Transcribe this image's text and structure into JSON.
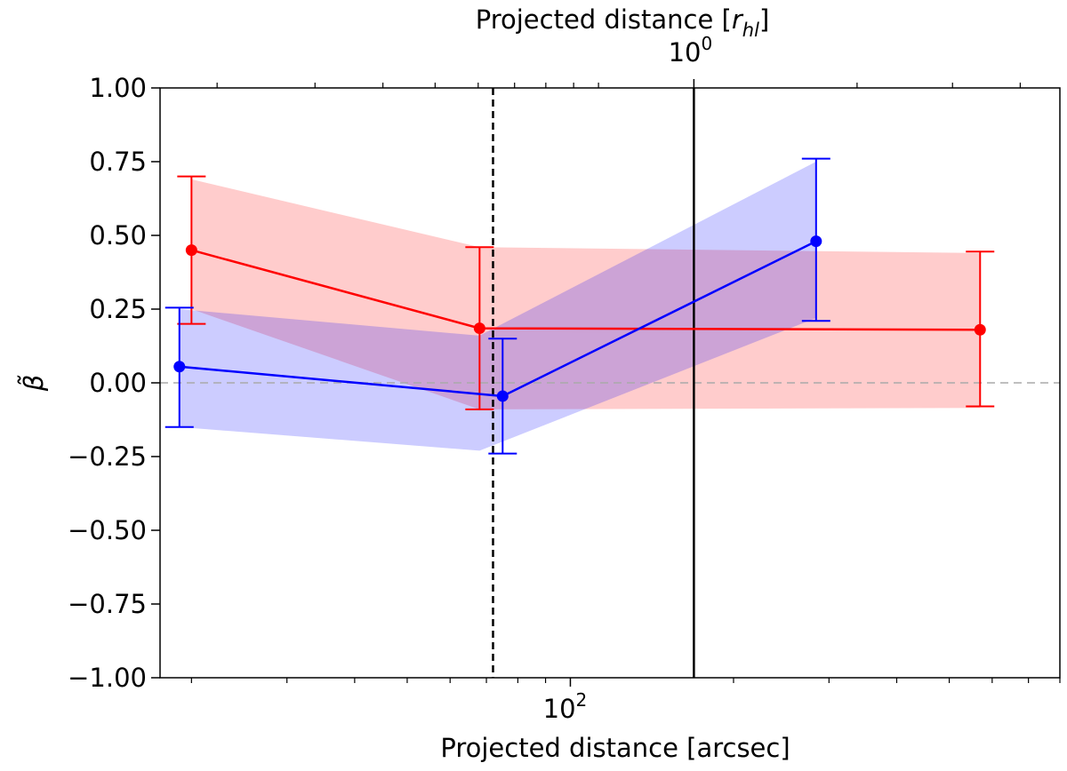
{
  "chart_data": {
    "type": "line",
    "x_scale": "log",
    "x_unit": "arcsec",
    "xlabel": "Projected distance [arcsec]",
    "xlim": [
      17.5,
      800
    ],
    "x_major_ticks": [
      {
        "value": 100,
        "base": "10",
        "exp": "2"
      }
    ],
    "x_minor_ticks": [
      20,
      30,
      40,
      50,
      60,
      70,
      80,
      90,
      200,
      300,
      400,
      500,
      600,
      700,
      800
    ],
    "top_axis": {
      "label_prefix": "Projected distance [",
      "label_var": "r",
      "label_sub": "hl",
      "label_suffix": "]",
      "major_tick": {
        "value": 1,
        "at_arcsec": 169,
        "base": "10",
        "exp": "0"
      },
      "minor_ticks_at_arcsec": [
        22.3,
        33.8,
        45.1,
        56.3,
        67.6,
        78.9,
        90.1,
        101.4,
        112.7,
        338,
        507,
        676
      ]
    },
    "ylabel": "β̃",
    "ylim": [
      -1.0,
      1.0
    ],
    "yticks": [
      -1.0,
      -0.75,
      -0.5,
      -0.25,
      0.0,
      0.25,
      0.5,
      0.75,
      1.0
    ],
    "ytick_labels": [
      "−1.00",
      "−0.75",
      "−0.50",
      "−0.25",
      "0.00",
      "0.25",
      "0.50",
      "0.75",
      "1.00"
    ],
    "grid": false,
    "reference_lines": [
      {
        "axis": "y",
        "value": 0.0,
        "style": "dashed",
        "color": "#aaaaaa"
      },
      {
        "axis": "x",
        "value": 72,
        "style": "dashed",
        "color": "#000000"
      },
      {
        "axis": "x",
        "value": 169,
        "style": "solid",
        "color": "#000000"
      }
    ],
    "series": [
      {
        "color": "#ff0000",
        "band_color": "#ff0000",
        "x": [
          20,
          68,
          570
        ],
        "y": [
          0.45,
          0.185,
          0.18
        ],
        "yerr_low": [
          0.2,
          -0.09,
          -0.08
        ],
        "yerr_high": [
          0.7,
          0.46,
          0.445
        ],
        "band": [
          {
            "x": 20,
            "low": 0.25,
            "high": 0.69
          },
          {
            "x": 68,
            "low": -0.09,
            "high": 0.46
          },
          {
            "x": 570,
            "low": -0.085,
            "high": 0.44
          }
        ]
      },
      {
        "color": "#0000ff",
        "band_color": "#0000ff",
        "x": [
          19,
          75,
          284
        ],
        "y": [
          0.055,
          -0.045,
          0.48
        ],
        "yerr_low": [
          -0.15,
          -0.24,
          0.21
        ],
        "yerr_high": [
          0.255,
          0.15,
          0.76
        ],
        "band": [
          {
            "x": 19,
            "low": -0.15,
            "high": 0.25
          },
          {
            "x": 68,
            "low": -0.23,
            "high": 0.16
          },
          {
            "x": 284,
            "low": 0.22,
            "high": 0.75
          }
        ]
      }
    ]
  }
}
